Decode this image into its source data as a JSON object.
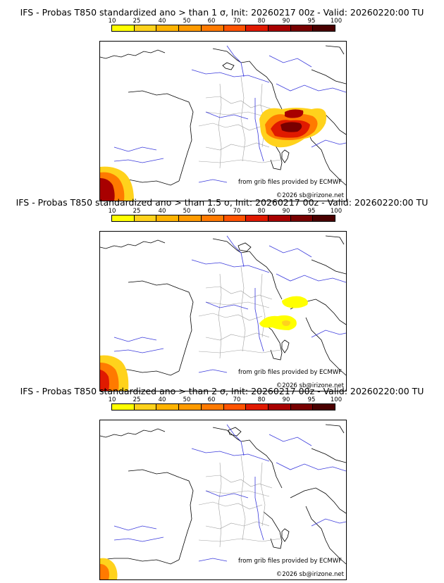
{
  "colorbar": {
    "labels": [
      "10",
      "25",
      "40",
      "50",
      "60",
      "70",
      "80",
      "90",
      "95",
      "100"
    ],
    "colors": [
      "#ffff00",
      "#ffd21c",
      "#ffb300",
      "#ff9b00",
      "#ff7a00",
      "#ff5300",
      "#e01a00",
      "#a80000",
      "#780000",
      "#4a0000"
    ]
  },
  "panels": [
    {
      "title": "IFS - Probas T850  standardized ano > than 1 σ, Init: 20260217 00z - Valid: 20260220:00 TU",
      "credit_source": "from grib files provided by ECMWF",
      "credit_copyright": "©2026 sb@irizone.net"
    },
    {
      "title": "IFS - Probas T850  standardized ano > than 1.5 σ, Init: 20260217 00z - Valid: 20260220:00 TU",
      "credit_source": "from grib files provided by ECMWF",
      "credit_copyright": "©2026 sb@irizone.net"
    },
    {
      "title": "IFS - Probas T850  standardized ano > than 2 σ, Init: 20260217 00z - Valid: 20260220:00 TU",
      "credit_source": "from grib files provided by ECMWF",
      "credit_copyright": "©2026 sb@irizone.net"
    }
  ]
}
